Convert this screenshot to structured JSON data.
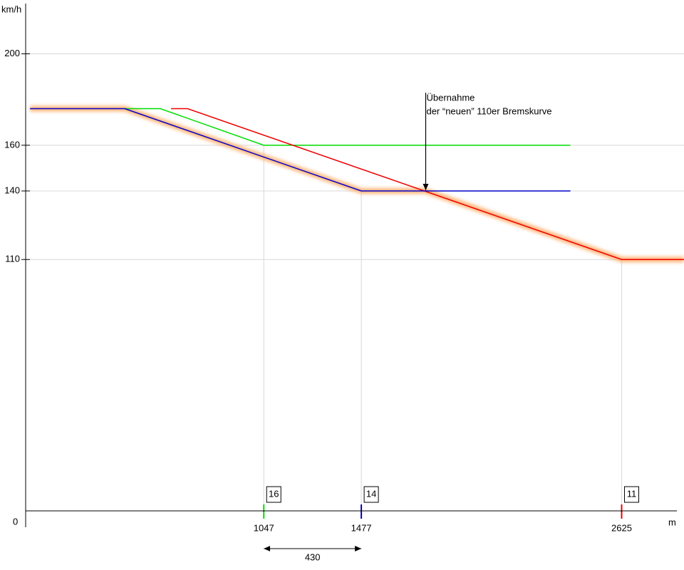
{
  "chart_data": {
    "type": "line",
    "y_label": "km/h",
    "x_label": "m",
    "xlim": [
      0,
      2900
    ],
    "ylim": [
      0,
      222
    ],
    "yticks": [
      200,
      160,
      140,
      110
    ],
    "xticks": [
      1047,
      1477,
      2625
    ],
    "grid": true,
    "series": [
      {
        "color": "#ffb070",
        "x": [
          16,
          434,
          1477,
          1761,
          2625,
          2900
        ],
        "values": [
          176,
          176,
          140,
          140,
          110,
          110
        ]
      },
      {
        "color": "#00dd00",
        "x": [
          434,
          591,
          1047,
          2399
        ],
        "values": [
          176,
          176,
          160,
          160
        ]
      },
      {
        "color": "#ee0000",
        "x": [
          638,
          711,
          2625,
          2900
        ],
        "values": [
          176,
          176,
          110,
          110
        ]
      },
      {
        "color": "#0000cc",
        "x": [
          16,
          434,
          1477,
          2399
        ],
        "values": [
          176,
          176,
          140,
          140
        ]
      }
    ],
    "signals": [
      {
        "x": 1047,
        "label": "16",
        "color": "#00dd00"
      },
      {
        "x": 1477,
        "label": "14",
        "color": "#0000cc"
      },
      {
        "x": 2625,
        "label": "11",
        "color": "#ee0000"
      }
    ],
    "dimension": {
      "from": 1047,
      "to": 1477,
      "value": 430
    },
    "annotation": {
      "lines": [
        "Übernahme",
        "der “neuen” 110er Bremskurve"
      ],
      "x": 1761,
      "y": 140
    }
  }
}
